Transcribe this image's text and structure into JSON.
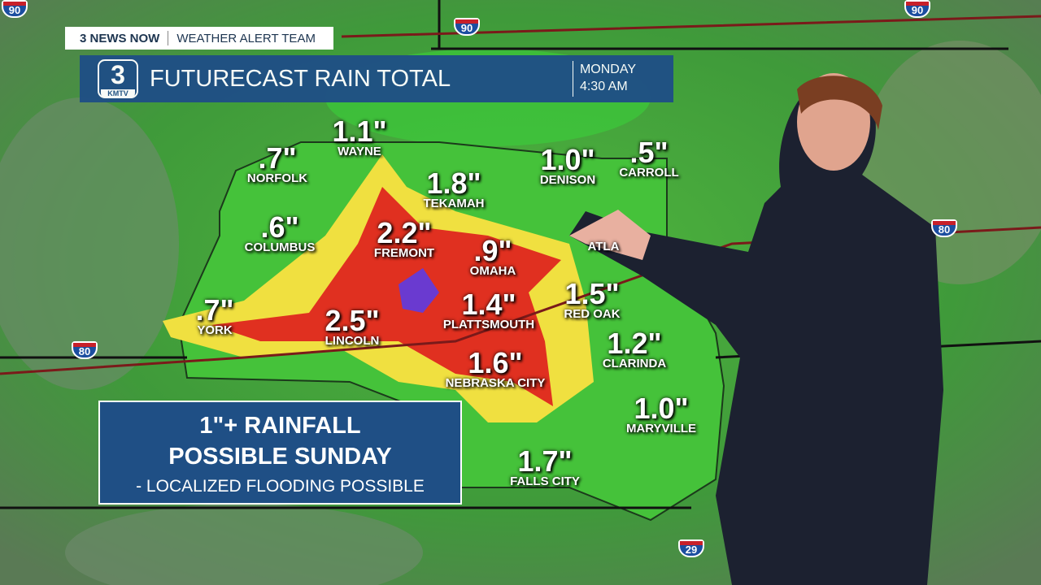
{
  "brand_bar": {
    "station": "3 NEWS NOW",
    "team": "WEATHER ALERT TEAM"
  },
  "title_bar": {
    "logo_number": "3",
    "logo_call": "KMTV",
    "title": "FUTURECAST RAIN TOTAL",
    "day": "MONDAY",
    "time": "4:30 AM"
  },
  "alert": {
    "line1": "1\"+ RAINFALL",
    "line2": "POSSIBLE SUNDAY",
    "line3": "- LOCALIZED FLOODING POSSIBLE"
  },
  "interstates": [
    "90",
    "90",
    "80",
    "80",
    "29"
  ],
  "cities": [
    {
      "name": "WAYNE",
      "value": "1.1\""
    },
    {
      "name": "NORFOLK",
      "value": ".7\""
    },
    {
      "name": "COLUMBUS",
      "value": ".6\""
    },
    {
      "name": "TEKAMAH",
      "value": "1.8\""
    },
    {
      "name": "FREMONT",
      "value": "2.2\""
    },
    {
      "name": "OMAHA",
      "value": ".9\""
    },
    {
      "name": "DENISON",
      "value": "1.0\""
    },
    {
      "name": "CARROLL",
      "value": ".5\""
    },
    {
      "name": "ATLA",
      "value": ""
    },
    {
      "name": "YORK",
      "value": ".7\""
    },
    {
      "name": "LINCOLN",
      "value": "2.5\""
    },
    {
      "name": "PLATTSMOUTH",
      "value": "1.4\""
    },
    {
      "name": "RED OAK",
      "value": "1.5\""
    },
    {
      "name": "CLARINDA",
      "value": "1.2\""
    },
    {
      "name": "NEBRASKA CITY",
      "value": "1.6\""
    },
    {
      "name": "MARYVILLE",
      "value": "1.0\""
    },
    {
      "name": "FALLS CITY",
      "value": "1.7\""
    }
  ],
  "colors": {
    "banner": "#1f4f85",
    "light_rain": "#3fc43a",
    "moderate": "#f0e040",
    "heavy": "#e03020",
    "extreme": "#6a3ad0"
  }
}
